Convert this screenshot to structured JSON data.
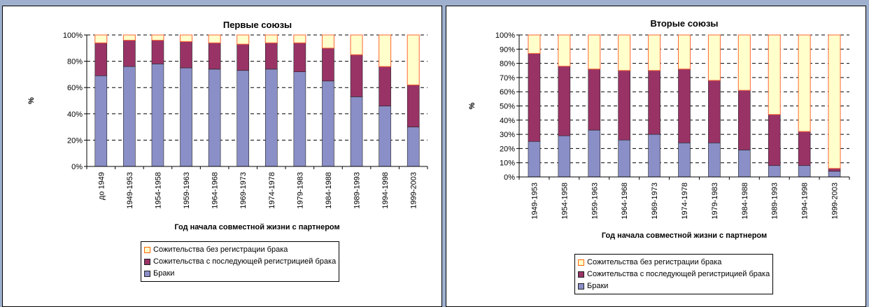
{
  "chart_data": [
    {
      "type": "bar",
      "stacked": true,
      "title": "Первые союзы",
      "xlabel": "Год начала совместной жизни с партнером",
      "ylabel": "%",
      "ylim": [
        0,
        100
      ],
      "yticks": [
        "0%",
        "20%",
        "40%",
        "60%",
        "80%",
        "100%"
      ],
      "ytick_values": [
        0,
        20,
        40,
        60,
        80,
        100
      ],
      "grid": true,
      "legend_position": "bottom",
      "categories": [
        "до 1949",
        "1949-1953",
        "1954-1958",
        "1959-1963",
        "1964-1968",
        "1969-1973",
        "1974-1978",
        "1979-1983",
        "1984-1988",
        "1989-1993",
        "1994-1998",
        "1999-2003"
      ],
      "series": [
        {
          "name": "Браки",
          "color": "#8b8fc7",
          "values": [
            69,
            76,
            78,
            75,
            74,
            73,
            74,
            72,
            65,
            53,
            46,
            30
          ]
        },
        {
          "name": "Сожительства с последующей регистрицией брака",
          "color": "#993366",
          "values": [
            25,
            20,
            18,
            20,
            20,
            20,
            20,
            22,
            25,
            32,
            30,
            32
          ]
        },
        {
          "name": "Сожительства без регистрации брака",
          "color": "#ffffcc",
          "values": [
            6,
            4,
            4,
            5,
            6,
            7,
            6,
            6,
            10,
            15,
            24,
            38
          ]
        }
      ],
      "legend_order": [
        "Сожительства без регистрации брака",
        "Сожительства с последующей регистрицией брака",
        "Браки"
      ]
    },
    {
      "type": "bar",
      "stacked": true,
      "title": "Вторые союзы",
      "xlabel": "Год начала совместной жизни с партнером",
      "ylabel": "%",
      "ylim": [
        0,
        100
      ],
      "yticks": [
        "0%",
        "10%",
        "20%",
        "30%",
        "40%",
        "50%",
        "60%",
        "70%",
        "80%",
        "90%",
        "100%"
      ],
      "ytick_values": [
        0,
        10,
        20,
        30,
        40,
        50,
        60,
        70,
        80,
        90,
        100
      ],
      "grid": true,
      "legend_position": "bottom",
      "categories": [
        "1949-1953",
        "1954-1958",
        "1959-1963",
        "1964-1968",
        "1969-1973",
        "1974-1978",
        "1979-1983",
        "1984-1988",
        "1989-1993",
        "1994-1998",
        "1999-2003"
      ],
      "series": [
        {
          "name": "Браки",
          "color": "#8b8fc7",
          "values": [
            25,
            29,
            33,
            26,
            30,
            24,
            24,
            19,
            8,
            8,
            4
          ]
        },
        {
          "name": "Сожительства с последующей регистрицией брака",
          "color": "#993366",
          "values": [
            62,
            49,
            43,
            49,
            45,
            52,
            44,
            42,
            36,
            24,
            2
          ]
        },
        {
          "name": "Сожительства без регистрации брака",
          "color": "#ffffcc",
          "values": [
            13,
            22,
            24,
            25,
            25,
            24,
            32,
            39,
            56,
            68,
            94
          ]
        }
      ],
      "legend_order": [
        "Сожительства без регистрации брака",
        "Сожительства с последующей регистрицией брака",
        "Браки"
      ]
    }
  ]
}
